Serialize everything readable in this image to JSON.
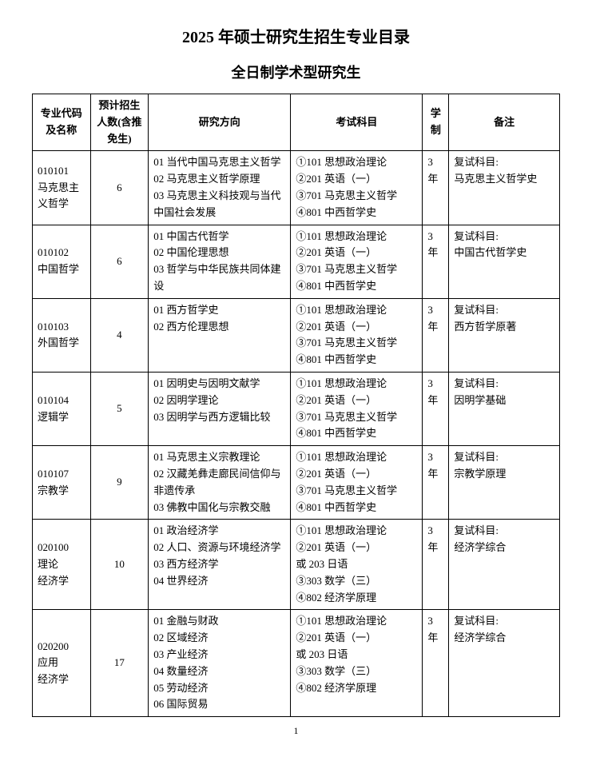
{
  "title": "2025 年硕士研究生招生专业目录",
  "subtitle": "全日制学术型研究生",
  "columns": {
    "code": "专业代码及名称",
    "count": "预计招生人数(含推免生)",
    "direction": "研究方向",
    "exam": "考试科目",
    "duration": "学制",
    "note": "备注"
  },
  "rows": [
    {
      "code": "010101\n马克思主义哲学",
      "count": "6",
      "direction": "01 当代中国马克思主义哲学\n02 马克思主义哲学原理\n03 马克思主义科技观与当代中国社会发展",
      "exam": "①101 思想政治理论\n②201 英语（一）\n③701 马克思主义哲学\n④801 中西哲学史",
      "duration": "3 年",
      "note": "复试科目:\n马克思主义哲学史"
    },
    {
      "code": "010102\n中国哲学",
      "count": "6",
      "direction": "01 中国古代哲学\n02 中国伦理思想\n03 哲学与中华民族共同体建设",
      "exam": "①101 思想政治理论\n②201 英语（一）\n③701 马克思主义哲学\n④801 中西哲学史",
      "duration": "3 年",
      "note": "复试科目:\n中国古代哲学史"
    },
    {
      "code": "010103\n外国哲学",
      "count": "4",
      "direction": "01 西方哲学史\n02 西方伦理思想",
      "exam": "①101 思想政治理论\n②201 英语（一）\n③701 马克思主义哲学\n④801 中西哲学史",
      "duration": "3 年",
      "note": "复试科目:\n西方哲学原著"
    },
    {
      "code": "010104\n逻辑学",
      "count": "5",
      "direction": "01 因明史与因明文献学\n02 因明学理论\n03 因明学与西方逻辑比较",
      "exam": "①101 思想政治理论\n②201 英语（一）\n③701 马克思主义哲学\n④801 中西哲学史",
      "duration": "3 年",
      "note": "复试科目:\n因明学基础"
    },
    {
      "code": "010107\n宗教学",
      "count": "9",
      "direction": "01 马克思主义宗教理论\n02 汉藏羌彝走廊民间信仰与非遗传承\n03 佛教中国化与宗教交融",
      "exam": "①101 思想政治理论\n②201 英语（一）\n③701 马克思主义哲学\n④801 中西哲学史",
      "duration": "3 年",
      "note": "复试科目:\n宗教学原理"
    },
    {
      "code": "020100\n理论\n经济学",
      "count": "10",
      "direction": "01 政治经济学\n02 人口、资源与环境经济学\n03 西方经济学\n04 世界经济",
      "exam": "①101 思想政治理论\n②201 英语（一）\n或 203 日语\n③303 数学（三）\n④802 经济学原理",
      "duration": "3 年",
      "note": "复试科目:\n经济学综合"
    },
    {
      "code": "020200\n应用\n经济学",
      "count": "17",
      "direction": "01 金融与财政\n02 区域经济\n03 产业经济\n04 数量经济\n05 劳动经济\n06 国际贸易",
      "exam": "①101 思想政治理论\n②201 英语（一）\n或 203 日语\n③303 数学（三）\n④802 经济学原理",
      "duration": "3 年",
      "note": "复试科目:\n经济学综合"
    }
  ],
  "pageNumber": "1"
}
